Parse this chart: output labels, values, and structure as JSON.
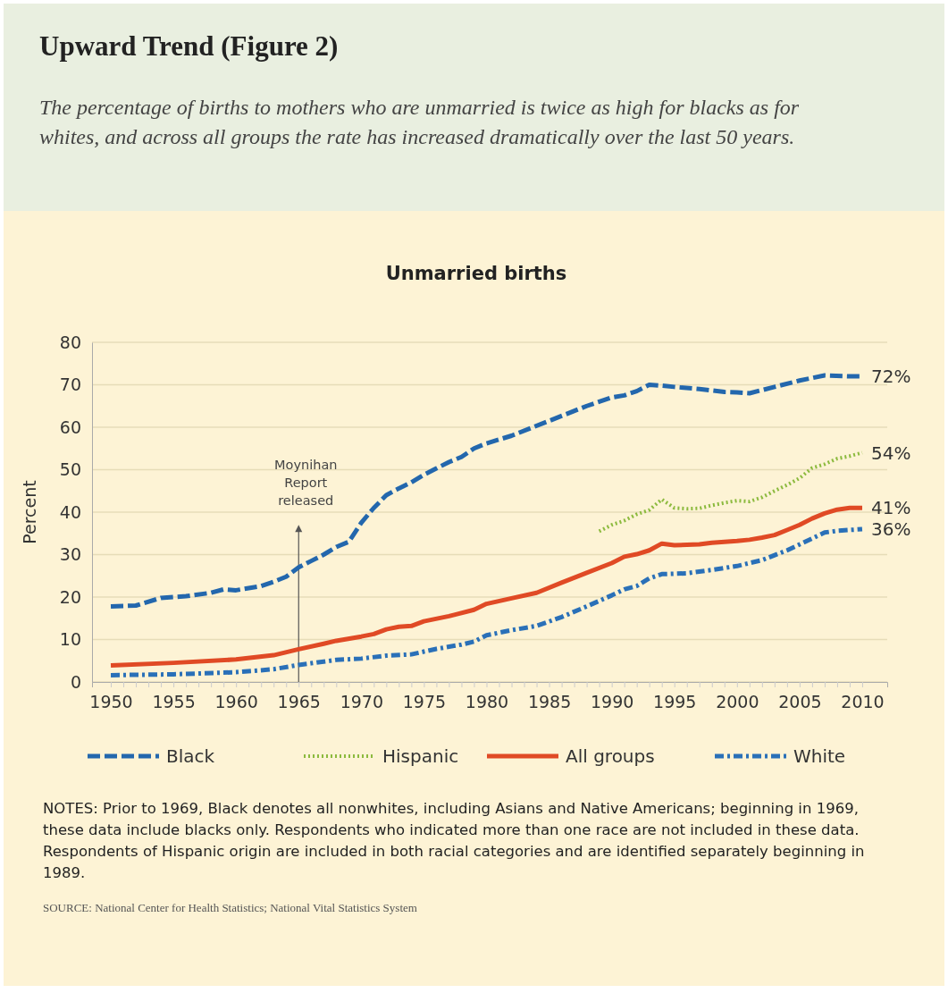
{
  "chart_data": {
    "type": "line",
    "title": "Upward Trend (Figure 2)",
    "subtitle": "The percentage of births to mothers who are unmarried is twice as high for blacks as for whites, and across all groups the rate has increased dramatically over the last 50 years.",
    "ylabel": "Percent",
    "annotations": [
      "Unmarried births",
      "NOTES: Prior to 1969, Black denotes all nonwhites, including Asians and Native Americans; beginning in 1969, these data include blacks only. Respondents who indicated more than one race are not included in these data. Respondents of Hispanic origin are included in both racial categories and are identified separately beginning in 1989.",
      "SOURCE: National Center for Health Statistics; National Vital Statistics System"
    ],
    "ref_lines": [
      {
        "axis": "x",
        "value": 1965,
        "label": "Moynihan Report released",
        "color": "#555555"
      }
    ],
    "xlim": [
      1948.5,
      2012
    ],
    "ylim": [
      0,
      80
    ],
    "yticks": [
      0,
      10,
      20,
      30,
      40,
      50,
      60,
      70,
      80
    ],
    "xticks": [
      1950,
      {
        "value": 1951,
        "label": null
      },
      {
        "value": 1952,
        "label": null
      },
      {
        "value": 1953,
        "label": null
      },
      {
        "value": 1954,
        "label": null
      },
      1955,
      {
        "value": 1956,
        "label": null
      },
      {
        "value": 1957,
        "label": null
      },
      {
        "value": 1958,
        "label": null
      },
      {
        "value": 1959,
        "label": null
      },
      1960,
      {
        "value": 1961,
        "label": null
      },
      {
        "value": 1962,
        "label": null
      },
      {
        "value": 1963,
        "label": null
      },
      {
        "value": 1964,
        "label": null
      },
      1965,
      {
        "value": 1966,
        "label": null
      },
      {
        "value": 1967,
        "label": null
      },
      {
        "value": 1968,
        "label": null
      },
      {
        "value": 1969,
        "label": null
      },
      1970,
      {
        "value": 1971,
        "label": null
      },
      {
        "value": 1972,
        "label": null
      },
      {
        "value": 1973,
        "label": null
      },
      {
        "value": 1974,
        "label": null
      },
      1975,
      {
        "value": 1976,
        "label": null
      },
      {
        "value": 1977,
        "label": null
      },
      {
        "value": 1978,
        "label": null
      },
      {
        "value": 1979,
        "label": null
      },
      1980,
      {
        "value": 1981,
        "label": null
      },
      {
        "value": 1982,
        "label": null
      },
      {
        "value": 1983,
        "label": null
      },
      {
        "value": 1984,
        "label": null
      },
      1985,
      {
        "value": 1986,
        "label": null
      },
      {
        "value": 1987,
        "label": null
      },
      {
        "value": 1988,
        "label": null
      },
      {
        "value": 1989,
        "label": null
      },
      1990,
      {
        "value": 1991,
        "label": null
      },
      {
        "value": 1992,
        "label": null
      },
      {
        "value": 1993,
        "label": null
      },
      {
        "value": 1994,
        "label": null
      },
      1995,
      {
        "value": 1996,
        "label": null
      },
      {
        "value": 1997,
        "label": null
      },
      {
        "value": 1998,
        "label": null
      },
      {
        "value": 1999,
        "label": null
      },
      2000,
      {
        "value": 2001,
        "label": null
      },
      {
        "value": 2002,
        "label": null
      },
      {
        "value": 2003,
        "label": null
      },
      {
        "value": 2004,
        "label": null
      },
      2005,
      {
        "value": 2006,
        "label": null
      },
      {
        "value": 2007,
        "label": null
      },
      {
        "value": 2008,
        "label": null
      },
      {
        "value": 2009,
        "label": null
      },
      2010
    ],
    "grid": "y",
    "legend": "bottom",
    "marker": "none",
    "series": [
      {
        "name": "Black",
        "color": "#2367ad",
        "line_style": "dashed",
        "x": [
          1950,
          1952,
          1954,
          1956,
          1958,
          1959,
          1960,
          1962,
          1963,
          1964,
          1965,
          1966,
          1967,
          1968,
          1969,
          1970,
          1971,
          1972,
          1973,
          1974,
          1975,
          1976,
          1977,
          1978,
          1979,
          1980,
          1982,
          1985,
          1988,
          1990,
          1991,
          1992,
          1993,
          1994,
          1995,
          1997,
          1999,
          2000,
          2001,
          2003,
          2005,
          2007,
          2009,
          2010
        ],
        "values": [
          17.8,
          18,
          19.8,
          20.2,
          21,
          21.8,
          21.6,
          22.6,
          23.6,
          24.8,
          27,
          28.5,
          30,
          31.8,
          33,
          37.5,
          41,
          44,
          45.6,
          47,
          48.8,
          50.3,
          51.8,
          53,
          55,
          56.2,
          58,
          61.5,
          65,
          67,
          67.5,
          68.5,
          70,
          69.8,
          69.5,
          69,
          68.3,
          68.2,
          68,
          69.5,
          71,
          72.2,
          72,
          72
        ],
        "value_labels": [
          null,
          null,
          null,
          null,
          null,
          null,
          null,
          null,
          null,
          null,
          null,
          null,
          null,
          null,
          null,
          null,
          null,
          null,
          null,
          null,
          null,
          null,
          null,
          null,
          null,
          null,
          null,
          null,
          null,
          null,
          null,
          null,
          null,
          null,
          null,
          null,
          null,
          null,
          null,
          null,
          null,
          null,
          null,
          "72%"
        ]
      },
      {
        "name": "Hispanic",
        "color": "#8cba3e",
        "line_style": "dotted",
        "x": [
          1989,
          1990,
          1991,
          1992,
          1993,
          1994,
          1995,
          1996,
          1997,
          1998,
          1999,
          2000,
          2001,
          2002,
          2003,
          2004,
          2005,
          2006,
          2007,
          2008,
          2009,
          2010
        ],
        "values": [
          35.5,
          37,
          38,
          39.5,
          40.5,
          43,
          41,
          40.8,
          40.9,
          41.6,
          42.2,
          42.7,
          42.5,
          43.5,
          45,
          46.4,
          48,
          50.4,
          51.3,
          52.6,
          53.2,
          54
        ],
        "value_labels": [
          null,
          null,
          null,
          null,
          null,
          null,
          null,
          null,
          null,
          null,
          null,
          null,
          null,
          null,
          null,
          null,
          null,
          null,
          null,
          null,
          null,
          "54%"
        ]
      },
      {
        "name": "All groups",
        "color": "#e04a25",
        "line_style": "solid",
        "x": [
          1950,
          1955,
          1960,
          1963,
          1965,
          1967,
          1968,
          1970,
          1971,
          1972,
          1973,
          1974,
          1975,
          1977,
          1979,
          1980,
          1982,
          1984,
          1986,
          1988,
          1990,
          1991,
          1992,
          1993,
          1994,
          1995,
          1997,
          1998,
          1999,
          2000,
          2001,
          2002,
          2003,
          2004,
          2005,
          2006,
          2007,
          2008,
          2009,
          2010
        ],
        "values": [
          3.9,
          4.5,
          5.3,
          6.3,
          7.7,
          9,
          9.7,
          10.7,
          11.3,
          12.4,
          13,
          13.2,
          14.3,
          15.5,
          17,
          18.4,
          19.7,
          21,
          23.4,
          25.7,
          28,
          29.5,
          30.1,
          31,
          32.6,
          32.2,
          32.4,
          32.8,
          33,
          33.2,
          33.5,
          34,
          34.6,
          35.8,
          37,
          38.5,
          39.7,
          40.6,
          41,
          41
        ],
        "value_labels": [
          null,
          null,
          null,
          null,
          null,
          null,
          null,
          null,
          null,
          null,
          null,
          null,
          null,
          null,
          null,
          null,
          null,
          null,
          null,
          null,
          null,
          null,
          null,
          null,
          null,
          null,
          null,
          null,
          null,
          null,
          null,
          null,
          null,
          null,
          null,
          null,
          null,
          null,
          null,
          "41%"
        ]
      },
      {
        "name": "White",
        "color": "#2a70b8",
        "line_style": "dashdot",
        "x": [
          1950,
          1955,
          1960,
          1963,
          1965,
          1966,
          1968,
          1970,
          1972,
          1974,
          1976,
          1978,
          1979,
          1980,
          1982,
          1984,
          1986,
          1988,
          1990,
          1991,
          1992,
          1993,
          1994,
          1996,
          1998,
          2000,
          2002,
          2004,
          2006,
          2007,
          2008,
          2010
        ],
        "values": [
          1.6,
          1.8,
          2.3,
          3,
          4,
          4.4,
          5.2,
          5.5,
          6.2,
          6.5,
          7.8,
          8.8,
          9.5,
          11,
          12.2,
          13.2,
          15.3,
          17.8,
          20.4,
          21.8,
          22.6,
          24.4,
          25.4,
          25.6,
          26.4,
          27.3,
          28.7,
          31,
          33.8,
          35.2,
          35.6,
          36
        ],
        "value_labels": [
          null,
          null,
          null,
          null,
          null,
          null,
          null,
          null,
          null,
          null,
          null,
          null,
          null,
          null,
          null,
          null,
          null,
          null,
          null,
          null,
          null,
          null,
          null,
          null,
          null,
          null,
          null,
          null,
          null,
          null,
          null,
          "36%"
        ]
      }
    ]
  }
}
